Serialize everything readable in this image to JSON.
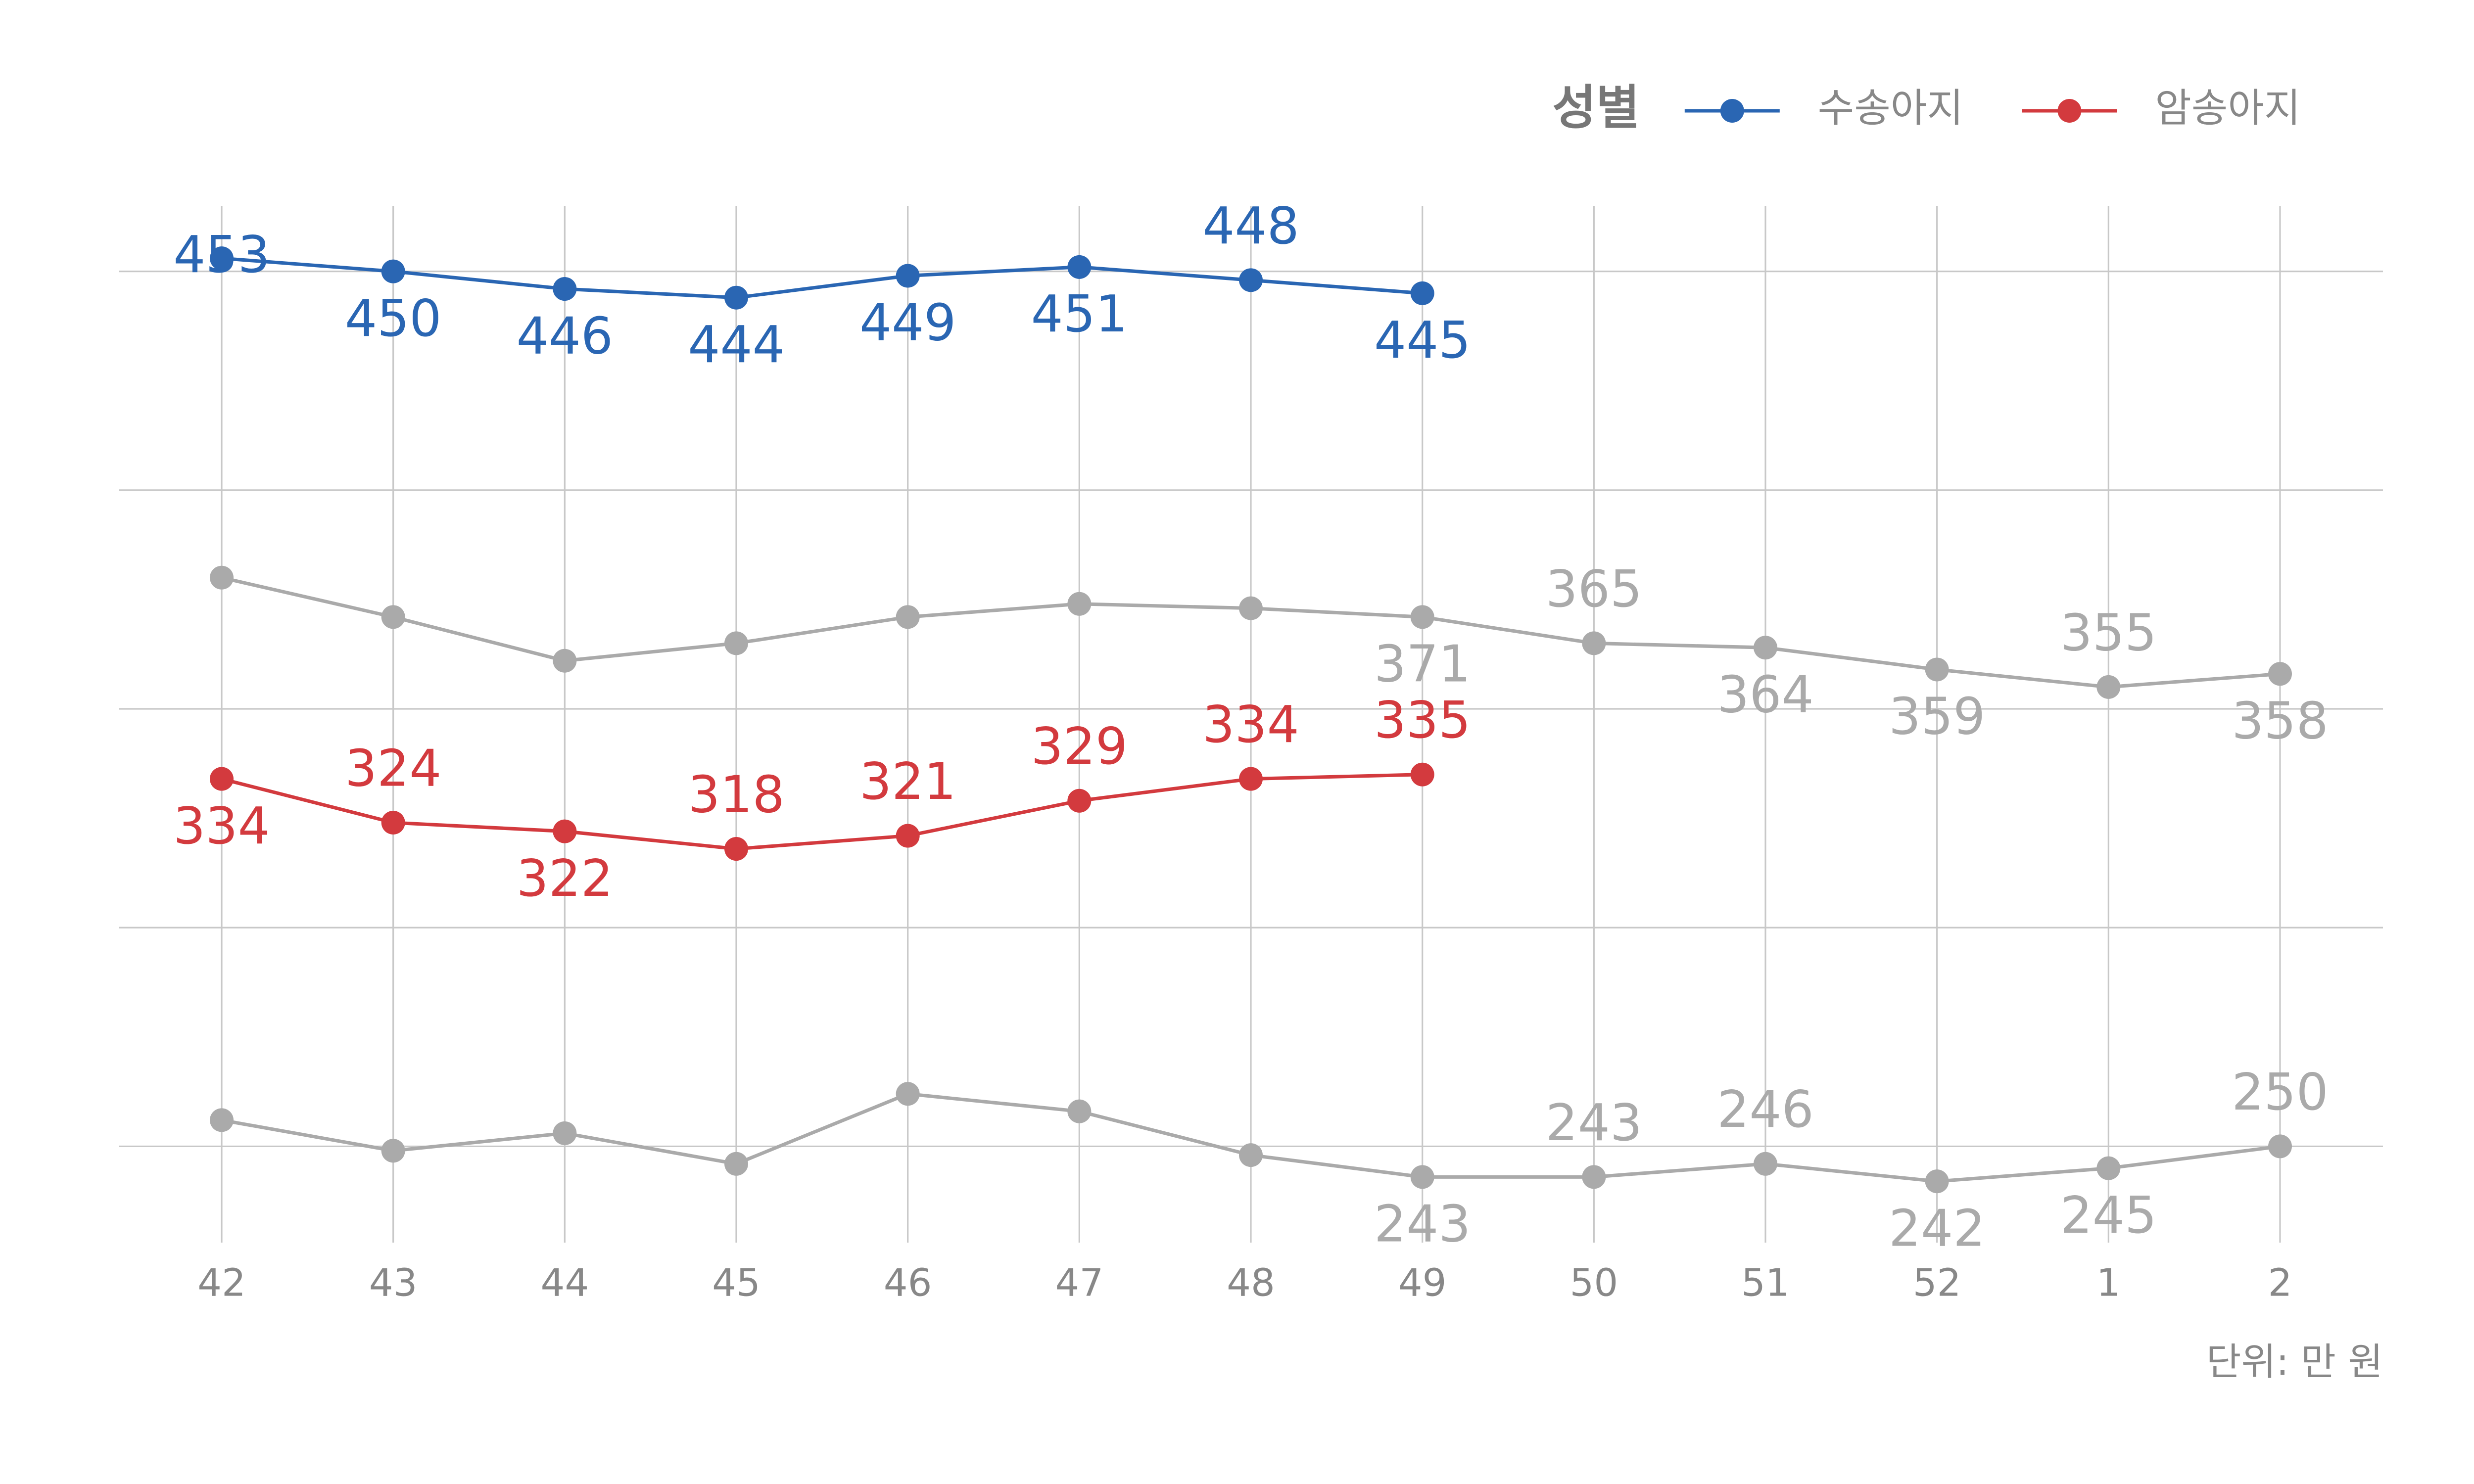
{
  "chart_data": {
    "type": "line",
    "categories": [
      "42",
      "43",
      "44",
      "45",
      "46",
      "47",
      "48",
      "49",
      "50",
      "51",
      "52",
      "1",
      "2"
    ],
    "legend_title": "성별",
    "legend": "top-right",
    "grid": true,
    "ylim": [
      228,
      465
    ],
    "yticks": [
      250,
      300,
      350,
      400,
      450
    ],
    "note": "단위: 만 원",
    "series": [
      {
        "color": "#aaaaaa",
        "values": [
          380,
          371,
          361,
          365,
          371,
          374,
          373,
          371,
          365,
          364,
          359,
          355,
          358
        ],
        "value_labels": [
          null,
          null,
          null,
          null,
          null,
          null,
          null,
          "371",
          "365",
          "364",
          "359",
          "355",
          "358"
        ]
      },
      {
        "color": "#aaaaaa",
        "values": [
          256,
          249,
          253,
          246,
          262,
          258,
          248,
          243,
          243,
          246,
          242,
          245,
          250
        ],
        "value_labels": [
          null,
          null,
          null,
          null,
          null,
          null,
          null,
          "243",
          "243",
          "246",
          "242",
          "245",
          "250"
        ]
      },
      {
        "name": "수송아지",
        "color": "#2a66b3",
        "values": [
          453,
          450,
          446,
          444,
          449,
          451,
          448,
          445,
          null,
          null,
          null,
          null,
          null
        ]
      },
      {
        "name": "암송아지",
        "color": "#d33a3e",
        "values": [
          334,
          324,
          322,
          318,
          321,
          329,
          334,
          335,
          null,
          null,
          null,
          null,
          null
        ]
      }
    ]
  }
}
